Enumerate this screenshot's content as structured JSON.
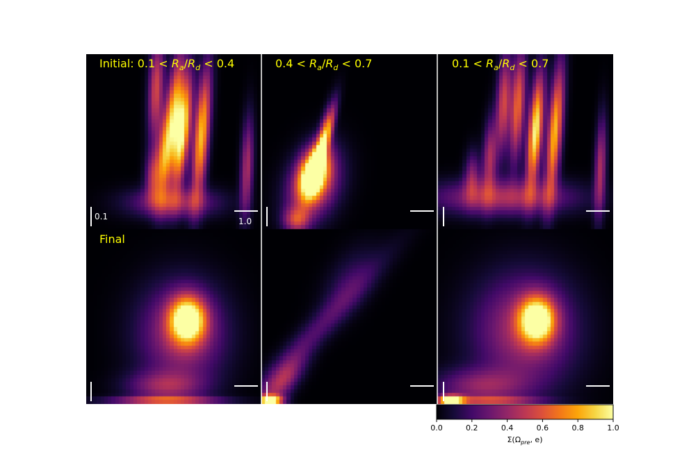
{
  "chart_data": {
    "type": "heatmap",
    "colormap": "inferno",
    "grid": false,
    "row_labels": [
      "",
      "Final"
    ],
    "panels": [
      {
        "title_parts": {
          "prefix": "Initial: ",
          "lo": "0.1",
          "var": "R",
          "sub_a": "a",
          "sub_d": "d",
          "hi": "0.4"
        },
        "initial_features": [
          {
            "u": 0.4,
            "v": 0.8,
            "su": 0.03,
            "sv": 0.2,
            "amp": 0.55,
            "tilt": 0.05
          },
          {
            "u": 0.5,
            "v": 0.66,
            "su": 0.03,
            "sv": 0.24,
            "amp": 0.8,
            "tilt": 0.1
          },
          {
            "u": 0.55,
            "v": 0.55,
            "su": 0.03,
            "sv": 0.22,
            "amp": 1.0,
            "tilt": 0.1
          },
          {
            "u": 0.66,
            "v": 0.54,
            "su": 0.03,
            "sv": 0.26,
            "amp": 0.85,
            "tilt": 0.08
          },
          {
            "u": 0.44,
            "v": 0.4,
            "su": 0.03,
            "sv": 0.18,
            "amp": 0.55,
            "tilt": 0.06
          },
          {
            "u": 0.38,
            "v": 0.3,
            "su": 0.03,
            "sv": 0.1,
            "amp": 0.4,
            "tilt": 0.03
          },
          {
            "u": 0.5,
            "v": 0.15,
            "su": 0.18,
            "sv": 0.06,
            "amp": 0.4,
            "tilt": 0.0
          },
          {
            "u": 0.92,
            "v": 0.35,
            "su": 0.025,
            "sv": 0.2,
            "amp": 0.45,
            "tilt": 0.04
          }
        ],
        "final_features": [
          {
            "u": 0.58,
            "v": 0.48,
            "su": 0.07,
            "sv": 0.09,
            "amp": 1.0,
            "tilt": 0.0
          },
          {
            "u": 0.55,
            "v": 0.4,
            "su": 0.17,
            "sv": 0.2,
            "amp": 0.45,
            "tilt": 0.0
          },
          {
            "u": 0.45,
            "v": 0.1,
            "su": 0.15,
            "sv": 0.06,
            "amp": 0.35,
            "tilt": 0.0
          },
          {
            "u": 0.45,
            "v": 0.02,
            "su": 0.22,
            "sv": 0.015,
            "amp": 0.55,
            "tilt": 0.0
          }
        ]
      },
      {
        "title_parts": {
          "prefix": "",
          "lo": "0.4",
          "var": "R",
          "sub_a": "a",
          "sub_d": "d",
          "hi": "0.7"
        },
        "initial_features": [
          {
            "u": 0.3,
            "v": 0.32,
            "su": 0.055,
            "sv": 0.1,
            "amp": 1.0,
            "tilt": 0.2
          },
          {
            "u": 0.3,
            "v": 0.25,
            "su": 0.1,
            "sv": 0.14,
            "amp": 0.55,
            "tilt": 0.2
          },
          {
            "u": 0.34,
            "v": 0.47,
            "su": 0.025,
            "sv": 0.15,
            "amp": 0.6,
            "tilt": 0.25
          },
          {
            "u": 0.38,
            "v": 0.55,
            "su": 0.02,
            "sv": 0.12,
            "amp": 0.4,
            "tilt": 0.25
          },
          {
            "u": 0.2,
            "v": 0.05,
            "su": 0.05,
            "sv": 0.05,
            "amp": 0.45,
            "tilt": 0.0
          }
        ],
        "final_features": [
          {
            "u": 0.05,
            "v": 0.02,
            "su": 0.05,
            "sv": 0.02,
            "amp": 1.0,
            "tilt": 0.0
          },
          {
            "u": 0.12,
            "v": 0.12,
            "su": 0.06,
            "sv": 0.1,
            "amp": 0.4,
            "tilt": 0.6
          },
          {
            "u": 0.3,
            "v": 0.4,
            "su": 0.07,
            "sv": 0.3,
            "amp": 0.22,
            "tilt": 0.9
          },
          {
            "u": 0.5,
            "v": 0.7,
            "su": 0.09,
            "sv": 0.14,
            "amp": 0.15,
            "tilt": 0.4
          }
        ]
      },
      {
        "title_parts": {
          "prefix": "",
          "lo": "0.1",
          "var": "R",
          "sub_a": "a",
          "sub_d": "d",
          "hi": "0.7"
        },
        "initial_features": [
          {
            "u": 0.38,
            "v": 0.72,
            "su": 0.028,
            "sv": 0.2,
            "amp": 0.55,
            "tilt": 0.05
          },
          {
            "u": 0.46,
            "v": 0.7,
            "su": 0.028,
            "sv": 0.22,
            "amp": 0.65,
            "tilt": 0.06
          },
          {
            "u": 0.56,
            "v": 0.56,
            "su": 0.028,
            "sv": 0.22,
            "amp": 1.0,
            "tilt": 0.08
          },
          {
            "u": 0.67,
            "v": 0.55,
            "su": 0.028,
            "sv": 0.26,
            "amp": 0.85,
            "tilt": 0.08
          },
          {
            "u": 0.3,
            "v": 0.4,
            "su": 0.028,
            "sv": 0.16,
            "amp": 0.45,
            "tilt": 0.05
          },
          {
            "u": 0.2,
            "v": 0.3,
            "su": 0.03,
            "sv": 0.1,
            "amp": 0.35,
            "tilt": 0.03
          },
          {
            "u": 0.38,
            "v": 0.18,
            "su": 0.28,
            "sv": 0.07,
            "amp": 0.45,
            "tilt": 0.0
          },
          {
            "u": 0.93,
            "v": 0.35,
            "su": 0.022,
            "sv": 0.2,
            "amp": 0.45,
            "tilt": 0.04
          }
        ],
        "final_features": [
          {
            "u": 0.57,
            "v": 0.48,
            "su": 0.07,
            "sv": 0.09,
            "amp": 1.0,
            "tilt": 0.0
          },
          {
            "u": 0.5,
            "v": 0.42,
            "su": 0.2,
            "sv": 0.22,
            "amp": 0.45,
            "tilt": 0.0
          },
          {
            "u": 0.25,
            "v": 0.1,
            "su": 0.18,
            "sv": 0.07,
            "amp": 0.35,
            "tilt": 0.0
          },
          {
            "u": 0.08,
            "v": 0.02,
            "su": 0.05,
            "sv": 0.02,
            "amp": 1.0,
            "tilt": 0.0
          },
          {
            "u": 0.3,
            "v": 0.02,
            "su": 0.2,
            "sv": 0.015,
            "amp": 0.45,
            "tilt": 0.0
          }
        ]
      }
    ],
    "scale_bars": {
      "vertical_label": "0.1",
      "horizontal_label": "1.0"
    },
    "colorbar": {
      "label_text": "Σ(Ω",
      "label_sub": "pre",
      "label_tail": ", e)",
      "range": [
        0.0,
        1.0
      ],
      "ticks": [
        "0.0",
        "0.2",
        "0.4",
        "0.6",
        "0.8",
        "1.0"
      ]
    },
    "colors": {
      "title": "#ffff00",
      "scale": "#ffffff",
      "divider": "#ffffff",
      "background": "#000004"
    }
  }
}
